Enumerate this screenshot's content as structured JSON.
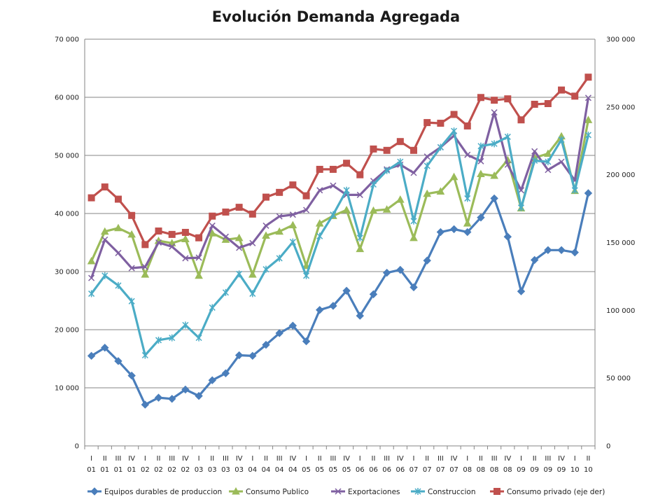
{
  "chart_data": {
    "type": "line",
    "title": "Evolución Demanda Agregada",
    "xlabel": "",
    "ylabel": "",
    "categories": [
      "I 01",
      "II 01",
      "III 01",
      "IV 01",
      "I 02",
      "II 02",
      "III 02",
      "IV 02",
      "I 03",
      "II 03",
      "III 03",
      "IV 03",
      "I 04",
      "II 04",
      "III 04",
      "IV 04",
      "I 05",
      "II 05",
      "III 05",
      "IV 05",
      "I 06",
      "II 06",
      "III 06",
      "IV 06",
      "I 07",
      "II 07",
      "III 07",
      "IV 07",
      "I 08",
      "II 08",
      "III 08",
      "IV 08",
      "I 09",
      "II 09",
      "III 09",
      "IV 09",
      "I 10",
      "II 10"
    ],
    "category_rows": {
      "quarter": [
        "I",
        "II",
        "III",
        "IV",
        "I",
        "II",
        "III",
        "IV",
        "I",
        "II",
        "III",
        "IV",
        "I",
        "II",
        "III",
        "IV",
        "I",
        "II",
        "III",
        "IV",
        "I",
        "II",
        "III",
        "IV",
        "I",
        "II",
        "III",
        "IV",
        "I",
        "II",
        "III",
        "IV",
        "I",
        "II",
        "III",
        "IV",
        "I",
        "II"
      ],
      "year": [
        "01",
        "01",
        "01",
        "01",
        "02",
        "02",
        "02",
        "02",
        "03",
        "03",
        "03",
        "03",
        "04",
        "04",
        "04",
        "04",
        "05",
        "05",
        "05",
        "05",
        "06",
        "06",
        "06",
        "06",
        "07",
        "07",
        "07",
        "07",
        "08",
        "08",
        "08",
        "08",
        "09",
        "09",
        "09",
        "09",
        "10",
        "10"
      ]
    },
    "y_left": {
      "ylim": [
        0,
        70000
      ],
      "ticks": [
        0,
        10000,
        20000,
        30000,
        40000,
        50000,
        60000,
        70000
      ],
      "tick_labels": [
        "0",
        "10 000",
        "20 000",
        "30 000",
        "40 000",
        "50 000",
        "60 000",
        "70 000"
      ]
    },
    "y_right": {
      "ylim": [
        0,
        300000
      ],
      "ticks": [
        0,
        50000,
        100000,
        150000,
        200000,
        250000,
        300000
      ],
      "tick_labels": [
        "0",
        "50 000",
        "100 000",
        "150 000",
        "200 000",
        "250 000",
        "300 000"
      ]
    },
    "grid": true,
    "legend_position": "bottom",
    "series": [
      {
        "name": "Equipos durables de produccion",
        "axis": "left",
        "color": "#4a7ebb",
        "marker": "diamond",
        "values": [
          15500,
          16900,
          14600,
          12100,
          7100,
          8300,
          8100,
          9700,
          8600,
          11300,
          12500,
          15600,
          15500,
          17400,
          19400,
          20700,
          18000,
          23400,
          24100,
          26700,
          22400,
          26100,
          29800,
          30300,
          27300,
          31900,
          36800,
          37300,
          36800,
          39300,
          42600,
          36000,
          26600,
          32000,
          33700,
          33700,
          33300,
          43500
        ]
      },
      {
        "name": "Consumo Publico",
        "axis": "left",
        "color": "#9bbb59",
        "marker": "triangle",
        "values": [
          31800,
          36900,
          37500,
          36400,
          29500,
          35300,
          34900,
          35600,
          29300,
          36600,
          35500,
          35800,
          29500,
          36200,
          36900,
          38000,
          31000,
          38300,
          39600,
          40600,
          33900,
          40500,
          40700,
          42400,
          35800,
          43400,
          43800,
          46300,
          38300,
          46800,
          46500,
          49200,
          40900,
          49600,
          50300,
          53300,
          43900,
          56100
        ]
      },
      {
        "name": "Exportaciones",
        "axis": "left",
        "color": "#7f60a1",
        "marker": "x",
        "values": [
          28900,
          35500,
          33200,
          30600,
          30800,
          35000,
          34300,
          32300,
          32400,
          37900,
          36000,
          34100,
          34900,
          37900,
          39500,
          39800,
          40600,
          44000,
          44800,
          43200,
          43200,
          45600,
          47600,
          48400,
          47000,
          49800,
          51400,
          53400,
          50100,
          49000,
          57400,
          48400,
          44000,
          50700,
          47500,
          48900,
          45700,
          59900
        ]
      },
      {
        "name": "Construccion",
        "axis": "left",
        "color": "#4bacc6",
        "marker": "asterisk",
        "values": [
          26200,
          29300,
          27600,
          24900,
          15600,
          18200,
          18600,
          20800,
          18600,
          23800,
          26400,
          29600,
          26200,
          30400,
          32300,
          35100,
          29300,
          36100,
          39800,
          44000,
          35800,
          45000,
          47400,
          48900,
          38700,
          48200,
          51400,
          54200,
          42600,
          51600,
          52000,
          53200,
          41000,
          49100,
          48900,
          52700,
          44000,
          53500
        ]
      },
      {
        "name": "Consumo privado (eje der)",
        "axis": "right",
        "color": "#c0504d",
        "marker": "square",
        "values": [
          183000,
          191000,
          182000,
          170000,
          148500,
          158500,
          156000,
          157500,
          153500,
          169500,
          172500,
          176000,
          171000,
          183500,
          187000,
          192500,
          184500,
          204000,
          204000,
          208500,
          200000,
          219000,
          218000,
          224500,
          218000,
          238500,
          238000,
          244500,
          236000,
          257000,
          255000,
          256000,
          240500,
          252000,
          252500,
          262500,
          258000,
          272000
        ]
      }
    ]
  }
}
